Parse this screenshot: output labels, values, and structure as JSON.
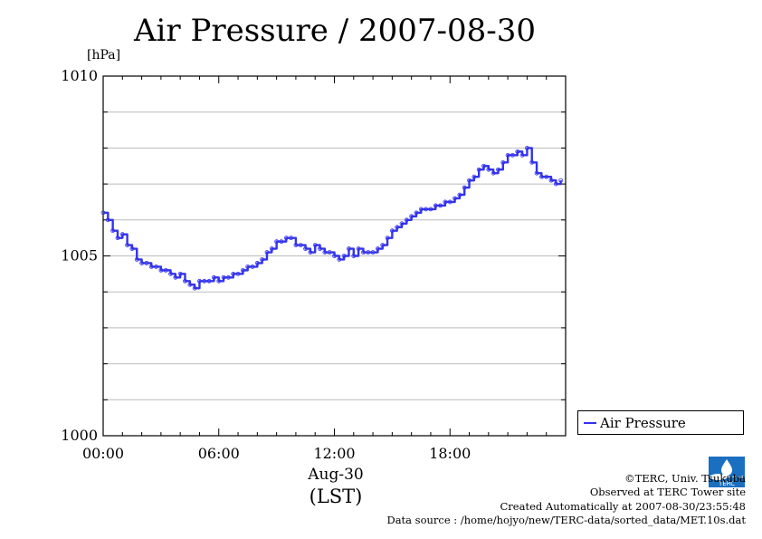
{
  "title": "Air Pressure / 2007-08-30",
  "unit_label": "[hPa]",
  "date_label": "Aug-30",
  "timezone_label": "(LST)",
  "legend": {
    "label": "Air Pressure"
  },
  "credits": {
    "org": "©TERC, Univ. Tsukuba",
    "site": "Observed at TERC Tower site",
    "created": "Created Automatically at 2007-08-30/23:55:48",
    "source": "Data source : /home/hojyo/new/TERC-data/sorted_data/MET.10s.dat"
  },
  "logo_text": "TERC",
  "colors": {
    "series": "#3333ee",
    "grid": "#bbbbbb",
    "logo": "#1a6fc0"
  },
  "chart_data": {
    "type": "line",
    "title": "Air Pressure / 2007-08-30",
    "ylabel": "[hPa]",
    "xlabel": "Aug-30 (LST)",
    "xlim": [
      0,
      24
    ],
    "ylim": [
      1000,
      1010
    ],
    "yticks": [
      "1000",
      "1005",
      "1010"
    ],
    "xticks": [
      "00:00",
      "06:00",
      "12:00",
      "18:00"
    ],
    "grid": true,
    "legend_position": "right-bottom",
    "series": [
      {
        "name": "Air Pressure",
        "x": [
          0.0,
          0.25,
          0.5,
          0.75,
          1.0,
          1.25,
          1.5,
          1.75,
          2.0,
          2.25,
          2.5,
          2.75,
          3.0,
          3.25,
          3.5,
          3.75,
          4.0,
          4.25,
          4.5,
          4.75,
          5.0,
          5.25,
          5.5,
          5.75,
          6.0,
          6.25,
          6.5,
          6.75,
          7.0,
          7.25,
          7.5,
          7.75,
          8.0,
          8.25,
          8.5,
          8.75,
          9.0,
          9.25,
          9.5,
          9.75,
          10.0,
          10.25,
          10.5,
          10.75,
          11.0,
          11.25,
          11.5,
          11.75,
          12.0,
          12.25,
          12.5,
          12.75,
          13.0,
          13.25,
          13.5,
          13.75,
          14.0,
          14.25,
          14.5,
          14.75,
          15.0,
          15.25,
          15.5,
          15.75,
          16.0,
          16.25,
          16.5,
          16.75,
          17.0,
          17.25,
          17.5,
          17.75,
          18.0,
          18.25,
          18.5,
          18.75,
          19.0,
          19.25,
          19.5,
          19.75,
          20.0,
          20.25,
          20.5,
          20.75,
          21.0,
          21.25,
          21.5,
          21.75,
          22.0,
          22.25,
          22.5,
          22.75,
          23.0,
          23.25,
          23.5,
          23.75
        ],
        "values": [
          1006.2,
          1006.0,
          1005.7,
          1005.5,
          1005.6,
          1005.3,
          1005.2,
          1004.9,
          1004.8,
          1004.8,
          1004.7,
          1004.7,
          1004.6,
          1004.6,
          1004.5,
          1004.4,
          1004.5,
          1004.3,
          1004.2,
          1004.1,
          1004.3,
          1004.3,
          1004.3,
          1004.4,
          1004.3,
          1004.4,
          1004.4,
          1004.5,
          1004.5,
          1004.6,
          1004.7,
          1004.7,
          1004.8,
          1004.9,
          1005.1,
          1005.2,
          1005.4,
          1005.4,
          1005.5,
          1005.5,
          1005.3,
          1005.3,
          1005.2,
          1005.1,
          1005.3,
          1005.2,
          1005.1,
          1005.1,
          1005.0,
          1004.9,
          1005.0,
          1005.2,
          1005.0,
          1005.2,
          1005.1,
          1005.1,
          1005.1,
          1005.2,
          1005.3,
          1005.5,
          1005.7,
          1005.8,
          1005.9,
          1006.0,
          1006.1,
          1006.2,
          1006.3,
          1006.3,
          1006.3,
          1006.4,
          1006.4,
          1006.5,
          1006.5,
          1006.6,
          1006.7,
          1006.9,
          1007.1,
          1007.2,
          1007.4,
          1007.5,
          1007.4,
          1007.3,
          1007.4,
          1007.6,
          1007.8,
          1007.8,
          1007.9,
          1007.8,
          1008.0,
          1007.6,
          1007.3,
          1007.2,
          1007.2,
          1007.1,
          1007.0,
          1007.1
        ]
      }
    ]
  }
}
